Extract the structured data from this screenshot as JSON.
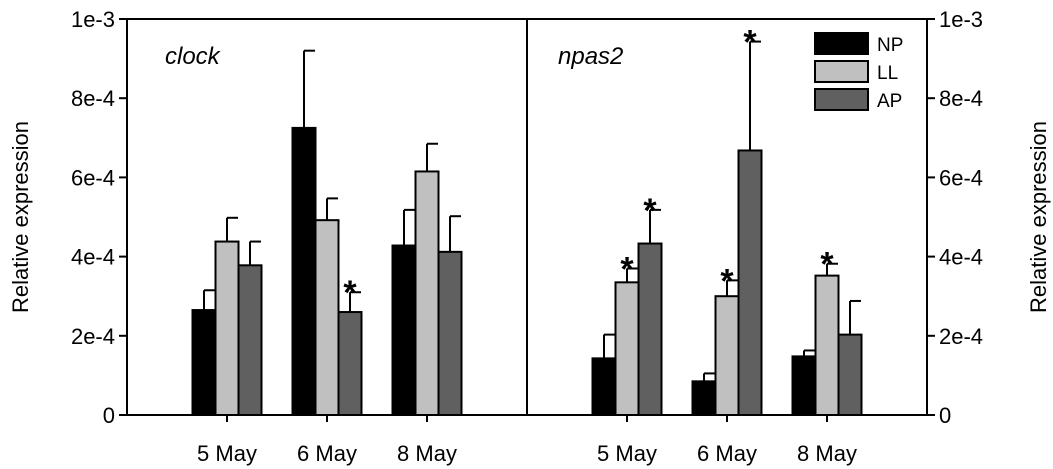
{
  "chart_data": {
    "type": "bar",
    "ylabel": "Relative expression",
    "ylim": [
      0,
      0.001
    ],
    "y_ticks": [
      0,
      0.0002,
      0.0004,
      0.0006,
      0.0008,
      0.001
    ],
    "y_tick_labels": [
      "0",
      "2e-4",
      "4e-4",
      "6e-4",
      "8e-4",
      "1e-3"
    ],
    "legend": {
      "placement": "top-right",
      "entries": [
        {
          "label": "NP",
          "color": "#000000"
        },
        {
          "label": "LL",
          "color": "#c0c0c0"
        },
        {
          "label": "AP",
          "color": "#606060"
        }
      ]
    },
    "panels": [
      {
        "title": "clock",
        "categories": [
          "5 May",
          "6 May",
          "8 May"
        ],
        "series": [
          {
            "name": "NP",
            "color": "#000000",
            "values": [
              0.000265,
              0.000725,
              0.000428
            ],
            "errors": [
              5e-05,
              0.000195,
              9e-05
            ],
            "significant": [
              false,
              false,
              false
            ]
          },
          {
            "name": "LL",
            "color": "#c0c0c0",
            "values": [
              0.000438,
              0.000492,
              0.000615
            ],
            "errors": [
              6e-05,
              5.5e-05,
              7e-05
            ],
            "significant": [
              false,
              false,
              false
            ]
          },
          {
            "name": "AP",
            "color": "#606060",
            "values": [
              0.000378,
              0.00026,
              0.000412
            ],
            "errors": [
              6e-05,
              5e-05,
              9e-05
            ],
            "significant": [
              false,
              true,
              false
            ]
          }
        ]
      },
      {
        "title": "npas2",
        "categories": [
          "5 May",
          "6 May",
          "8 May"
        ],
        "series": [
          {
            "name": "NP",
            "color": "#000000",
            "values": [
              0.000143,
              8.5e-05,
              0.000148
            ],
            "errors": [
              6e-05,
              2e-05,
              1.5e-05
            ],
            "significant": [
              false,
              false,
              false
            ]
          },
          {
            "name": "LL",
            "color": "#c0c0c0",
            "values": [
              0.000335,
              0.0003,
              0.000352
            ],
            "errors": [
              3.5e-05,
              4e-05,
              3e-05
            ],
            "significant": [
              true,
              true,
              true
            ]
          },
          {
            "name": "AP",
            "color": "#606060",
            "values": [
              0.000433,
              0.000668,
              0.000203
            ],
            "errors": [
              8.5e-05,
              0.000275,
              8.5e-05
            ],
            "significant": [
              true,
              true,
              false
            ]
          }
        ]
      }
    ],
    "significance_marker": "*"
  }
}
